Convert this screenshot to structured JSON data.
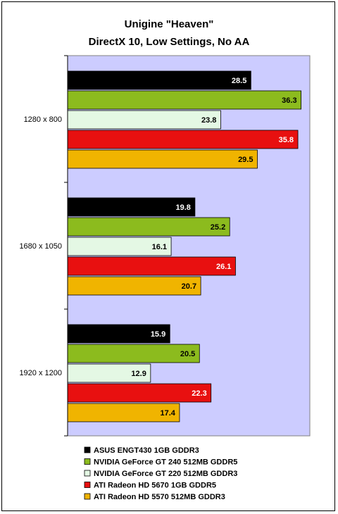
{
  "chart_data": {
    "type": "bar",
    "orientation": "horizontal",
    "title": "Unigine \"Heaven\"",
    "subtitle": "DirectX 10, Low Settings, No AA",
    "categories": [
      "1280 x 800",
      "1680 x 1050",
      "1920 x 1200"
    ],
    "series": [
      {
        "name": "ASUS ENGT430 1GB GDDR3",
        "values": [
          28.5,
          19.8,
          15.9
        ],
        "color": "#000000",
        "label_color": "#ffffff"
      },
      {
        "name": "NVIDIA GeForce GT 240 512MB GDDR5",
        "values": [
          36.3,
          25.2,
          20.5
        ],
        "color": "#8cbb1e",
        "label_color": "#000000"
      },
      {
        "name": "NVIDIA GeForce GT 220 512MB GDDR3",
        "values": [
          23.8,
          16.1,
          12.9
        ],
        "color": "#e4f8e4",
        "label_color": "#000000"
      },
      {
        "name": "ATI Radeon HD 5670 1GB GDDR5",
        "values": [
          35.8,
          26.1,
          22.3
        ],
        "color": "#e81010",
        "label_color": "#ffffff"
      },
      {
        "name": "ATI Radeon HD 5570 512MB GDDR3",
        "values": [
          29.5,
          20.7,
          17.4
        ],
        "color": "#f0b400",
        "label_color": "#000000"
      }
    ],
    "xlim": [
      0,
      37
    ],
    "grid": false,
    "plot_background": "#ccccff",
    "legend_position": "bottom"
  }
}
